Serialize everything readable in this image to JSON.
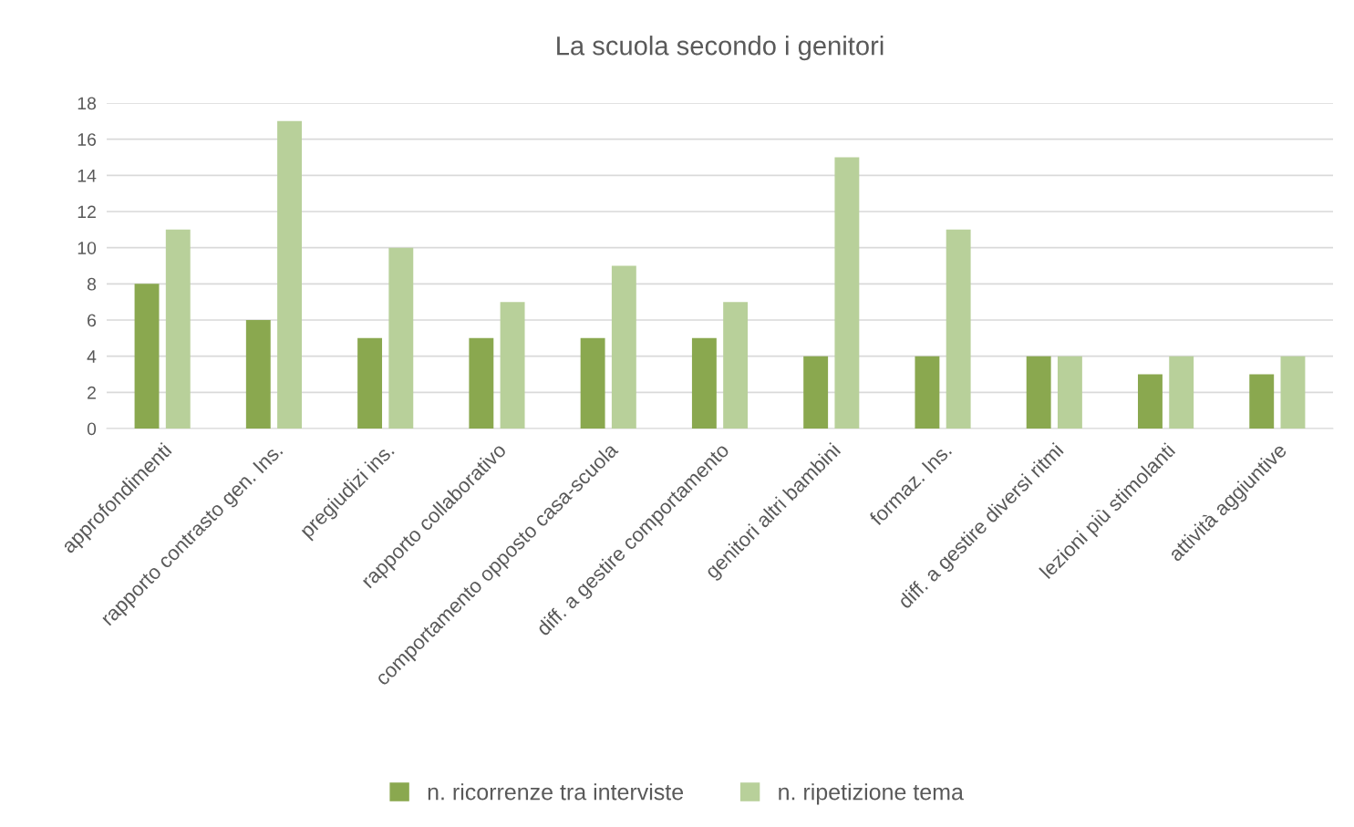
{
  "chart_data": {
    "type": "bar",
    "title": "La scuola secondo i genitori",
    "categories": [
      "approfondimenti",
      "rapporto contrasto gen. Ins.",
      "pregiudizi ins.",
      "rapporto collaborativo",
      "comportamento opposto casa-scuola",
      "diff. a gestire comportamento",
      "genitori altri bambini",
      "formaz. Ins.",
      "diff. a gestire diversi ritmi",
      "lezioni più stimolanti",
      "attività aggiuntive"
    ],
    "series": [
      {
        "name": "n. ricorrenze tra interviste",
        "color": "#8aa84f",
        "values": [
          8,
          6,
          5,
          5,
          5,
          5,
          4,
          4,
          4,
          3,
          3
        ]
      },
      {
        "name": "n. ripetizione tema",
        "color": "#b8d09a",
        "values": [
          11,
          17,
          10,
          7,
          9,
          7,
          15,
          11,
          4,
          4,
          4
        ]
      }
    ],
    "ylim": [
      0,
      18
    ],
    "yticks": [
      0,
      2,
      4,
      6,
      8,
      10,
      12,
      14,
      16,
      18
    ],
    "grid": "y",
    "legend": "bottom"
  }
}
